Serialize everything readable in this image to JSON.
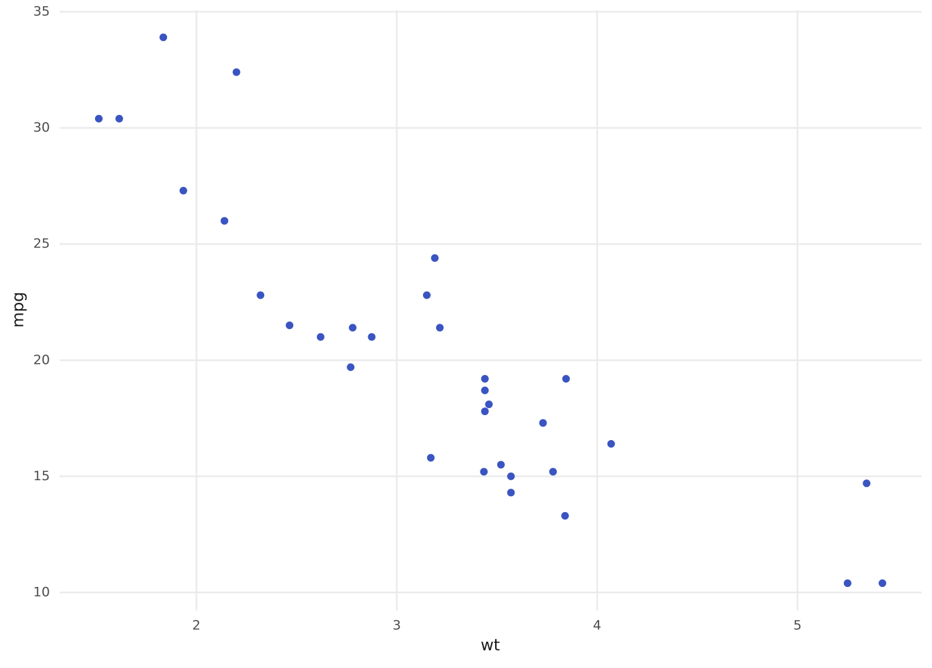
{
  "chart_data": {
    "type": "scatter",
    "x_label": "wt",
    "y_label": "mpg",
    "color": "#3a54c1",
    "grid": true,
    "x": [
      2.62,
      2.875,
      2.32,
      3.215,
      3.44,
      3.46,
      3.57,
      3.19,
      3.15,
      3.44,
      3.44,
      4.07,
      3.73,
      3.78,
      5.25,
      5.424,
      5.345,
      2.2,
      1.615,
      1.835,
      2.465,
      3.52,
      3.435,
      3.84,
      3.845,
      1.935,
      2.14,
      1.513,
      3.17,
      2.77,
      3.57,
      2.78
    ],
    "values": [
      21.0,
      21.0,
      22.8,
      21.4,
      18.7,
      18.1,
      14.3,
      24.4,
      22.8,
      19.2,
      17.8,
      16.4,
      17.3,
      15.2,
      10.4,
      10.4,
      14.7,
      32.4,
      30.4,
      33.9,
      21.5,
      15.5,
      15.2,
      13.3,
      19.2,
      27.3,
      26.0,
      30.4,
      15.8,
      19.7,
      15.0,
      21.4
    ],
    "xlim": [
      1.3175,
      5.6195
    ],
    "ylim": [
      9.225,
      35.075
    ],
    "xticks": [
      2,
      3,
      4,
      5
    ],
    "yticks": [
      10,
      15,
      20,
      25,
      30,
      35
    ]
  }
}
